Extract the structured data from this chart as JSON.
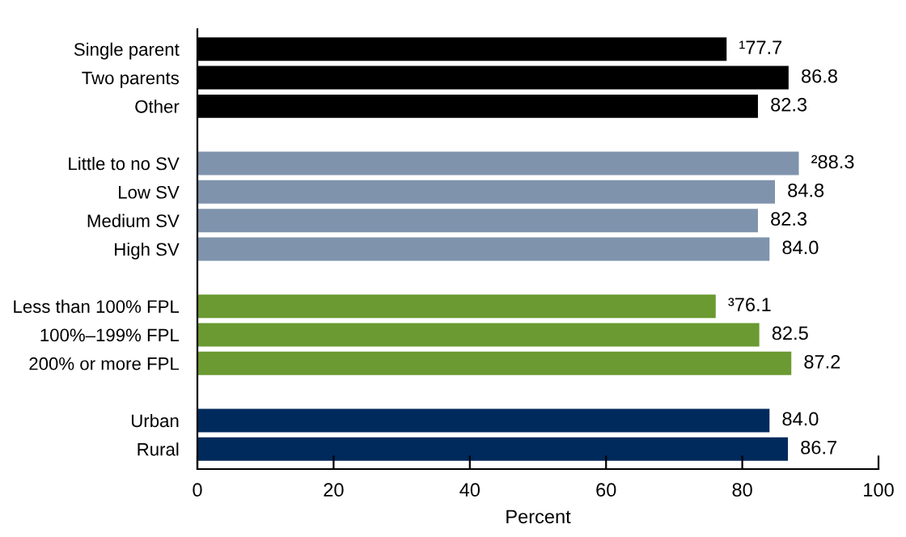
{
  "chart_data": {
    "type": "bar",
    "orientation": "horizontal",
    "xlabel": "Percent",
    "categories": [
      "Single parent",
      "Two parents",
      "Other",
      null,
      "Little to no SV",
      "Low SV",
      "Medium SV",
      "High SV",
      null,
      "Less than 100% FPL",
      "100%–199% FPL",
      "200% or more FPL",
      null,
      "Urban",
      "Rural"
    ],
    "values": [
      77.7,
      86.8,
      82.3,
      null,
      88.3,
      84.8,
      82.3,
      84.0,
      null,
      76.1,
      82.5,
      87.2,
      null,
      84.0,
      86.7
    ],
    "colors": [
      "#000000",
      "#000000",
      "#000000",
      null,
      "#7f93ad",
      "#7f93ad",
      "#7f93ad",
      "#7f93ad",
      null,
      "#6a9a31",
      "#6a9a31",
      "#6a9a31",
      null,
      "#002a5c",
      "#002a5c"
    ],
    "value_labels": [
      "¹77.7",
      "86.8",
      "82.3",
      null,
      "²88.3",
      "84.8",
      "82.3",
      "84.0",
      null,
      "³76.1",
      "82.5",
      "87.2",
      null,
      "84.0",
      "86.7"
    ],
    "xlim": [
      0,
      100
    ],
    "xticks": [
      0,
      20,
      40,
      60,
      80,
      100
    ],
    "grid": false,
    "legend": false
  }
}
